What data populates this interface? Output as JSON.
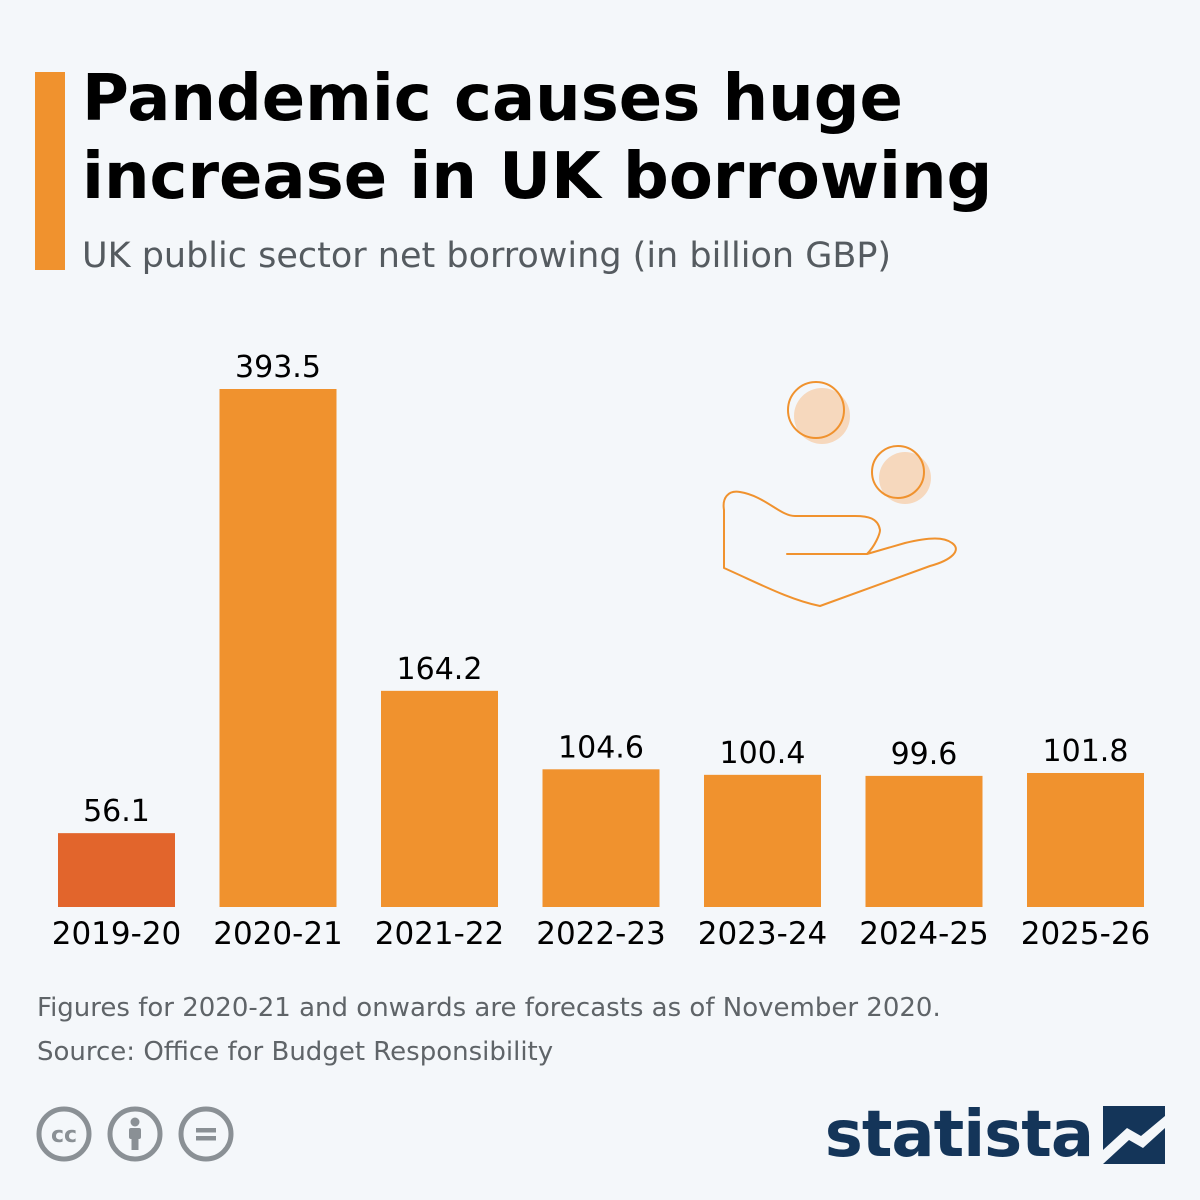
{
  "header": {
    "title": "Pandemic causes huge increase in UK borrowing",
    "subtitle": "UK public sector net borrowing (in billion GBP)"
  },
  "footer": {
    "note": "Figures for 2020-21 and onwards are forecasts as of November 2020.",
    "source": "Source: Office for Budget Responsibility",
    "logo": "statista",
    "icons": [
      "creative-commons-icon",
      "attribution-icon",
      "no-derivatives-icon"
    ]
  },
  "colors": {
    "accent": "#f0922e",
    "highlight": "#e2652c",
    "bars": "#f0922e",
    "brand": "#143559"
  },
  "chart_data": {
    "type": "bar",
    "categories": [
      "2019-20",
      "2020-21",
      "2021-22",
      "2022-23",
      "2023-24",
      "2024-25",
      "2025-26"
    ],
    "values": [
      56.1,
      393.5,
      164.2,
      104.6,
      100.4,
      99.6,
      101.8
    ],
    "value_labels": [
      "56.1",
      "393.5",
      "164.2",
      "104.6",
      "100.4",
      "99.6",
      "101.8"
    ],
    "highlighted_category": "2019-20",
    "title": "",
    "xlabel": "",
    "ylabel": "",
    "ylim": [
      0,
      393.5
    ],
    "grid": false,
    "legend": "none"
  }
}
